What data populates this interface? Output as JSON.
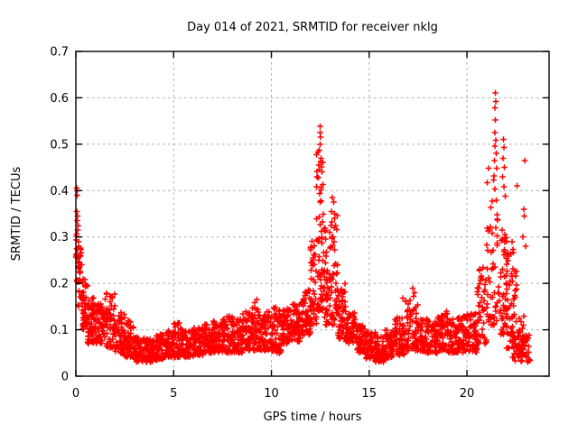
{
  "chart_data": {
    "type": "scatter",
    "title": "Day 014 of 2021, SRMTID for receiver nklg",
    "xlabel": "GPS time / hours",
    "ylabel": "SRMTID / TECUs",
    "xlim": [
      0,
      24.2
    ],
    "ylim": [
      0,
      0.7
    ],
    "xticks": [
      0,
      5,
      10,
      15,
      20
    ],
    "yticks": [
      0,
      0.1,
      0.2,
      0.3,
      0.4,
      0.5,
      0.6,
      0.7
    ],
    "grid": true,
    "legend": "none",
    "marker": "plus",
    "marker_color": "#ff0000",
    "grid_color": "#a8a8a8",
    "axis_color": "#000000",
    "series_name": "SRMTID",
    "seed": 42,
    "bands_format": [
      "hour_start",
      "hour_end",
      "n_points",
      "y_min",
      "y_max",
      "skew_exponent"
    ],
    "bands": [
      [
        0.0,
        0.15,
        16,
        0.2,
        0.32,
        1.0
      ],
      [
        0.1,
        0.35,
        28,
        0.15,
        0.29,
        1.2
      ],
      [
        0.3,
        0.6,
        42,
        0.1,
        0.21,
        1.3
      ],
      [
        0.6,
        1.0,
        55,
        0.07,
        0.17,
        1.4
      ],
      [
        1.0,
        1.5,
        60,
        0.07,
        0.16,
        1.4
      ],
      [
        1.5,
        2.0,
        60,
        0.06,
        0.18,
        1.3
      ],
      [
        2.0,
        2.5,
        60,
        0.05,
        0.14,
        1.4
      ],
      [
        2.5,
        3.0,
        60,
        0.04,
        0.12,
        1.5
      ],
      [
        3.0,
        3.5,
        60,
        0.03,
        0.085,
        1.3
      ],
      [
        3.5,
        4.0,
        60,
        0.03,
        0.08,
        1.3
      ],
      [
        4.0,
        4.5,
        60,
        0.035,
        0.09,
        1.3
      ],
      [
        4.5,
        5.0,
        60,
        0.04,
        0.1,
        1.3
      ],
      [
        5.0,
        5.5,
        60,
        0.04,
        0.115,
        1.4
      ],
      [
        5.5,
        6.0,
        60,
        0.04,
        0.1,
        1.3
      ],
      [
        6.0,
        6.5,
        60,
        0.045,
        0.105,
        1.3
      ],
      [
        6.5,
        7.0,
        60,
        0.05,
        0.115,
        1.3
      ],
      [
        7.0,
        7.5,
        60,
        0.05,
        0.12,
        1.3
      ],
      [
        7.5,
        8.0,
        60,
        0.05,
        0.13,
        1.4
      ],
      [
        8.0,
        8.5,
        60,
        0.05,
        0.125,
        1.3
      ],
      [
        8.5,
        9.0,
        60,
        0.055,
        0.14,
        1.3
      ],
      [
        9.0,
        9.5,
        60,
        0.055,
        0.15,
        1.4
      ],
      [
        9.5,
        10.0,
        60,
        0.055,
        0.14,
        1.3
      ],
      [
        10.0,
        10.5,
        60,
        0.05,
        0.15,
        1.3
      ],
      [
        10.5,
        11.0,
        60,
        0.07,
        0.145,
        1.3
      ],
      [
        11.0,
        11.5,
        60,
        0.075,
        0.16,
        1.3
      ],
      [
        11.5,
        12.0,
        60,
        0.085,
        0.19,
        1.3
      ],
      [
        12.0,
        12.3,
        40,
        0.11,
        0.3,
        1.5
      ],
      [
        12.3,
        12.65,
        55,
        0.14,
        0.5,
        1.8
      ],
      [
        12.65,
        13.0,
        45,
        0.11,
        0.33,
        1.5
      ],
      [
        13.0,
        13.4,
        50,
        0.11,
        0.36,
        1.6
      ],
      [
        13.4,
        13.8,
        50,
        0.08,
        0.2,
        1.4
      ],
      [
        13.8,
        14.3,
        55,
        0.07,
        0.14,
        1.3
      ],
      [
        14.3,
        14.8,
        55,
        0.05,
        0.11,
        1.3
      ],
      [
        14.8,
        15.3,
        55,
        0.035,
        0.095,
        1.3
      ],
      [
        15.3,
        15.8,
        55,
        0.03,
        0.09,
        1.2
      ],
      [
        15.8,
        16.3,
        55,
        0.04,
        0.1,
        1.3
      ],
      [
        16.3,
        16.8,
        55,
        0.045,
        0.13,
        1.4
      ],
      [
        16.8,
        17.5,
        70,
        0.055,
        0.165,
        1.4
      ],
      [
        17.5,
        18.0,
        55,
        0.05,
        0.125,
        1.3
      ],
      [
        18.0,
        18.5,
        55,
        0.05,
        0.12,
        1.3
      ],
      [
        18.5,
        19.0,
        55,
        0.055,
        0.14,
        1.3
      ],
      [
        19.0,
        19.5,
        55,
        0.05,
        0.125,
        1.3
      ],
      [
        19.5,
        20.0,
        55,
        0.05,
        0.13,
        1.3
      ],
      [
        20.0,
        20.5,
        55,
        0.05,
        0.135,
        1.3
      ],
      [
        20.5,
        21.0,
        45,
        0.07,
        0.24,
        1.5
      ],
      [
        21.0,
        21.6,
        55,
        0.11,
        0.46,
        1.7
      ],
      [
        21.6,
        22.05,
        50,
        0.09,
        0.33,
        1.6
      ],
      [
        22.0,
        22.55,
        55,
        0.06,
        0.27,
        1.4
      ],
      [
        22.55,
        23.0,
        40,
        0.045,
        0.14,
        1.4
      ],
      [
        22.3,
        23.25,
        45,
        0.03,
        0.09,
        1.2
      ]
    ],
    "outlier_points": [
      [
        0.05,
        0.405
      ],
      [
        0.08,
        0.4
      ],
      [
        0.06,
        0.39
      ],
      [
        0.04,
        0.355
      ],
      [
        0.09,
        0.345
      ],
      [
        0.07,
        0.335
      ],
      [
        0.12,
        0.325
      ],
      [
        0.1,
        0.315
      ],
      [
        9.25,
        0.165
      ],
      [
        9.15,
        0.158
      ],
      [
        12.5,
        0.539
      ],
      [
        12.5,
        0.525
      ],
      [
        12.51,
        0.515
      ],
      [
        12.49,
        0.5
      ],
      [
        12.45,
        0.487
      ],
      [
        12.55,
        0.47
      ],
      [
        12.42,
        0.455
      ],
      [
        12.58,
        0.44
      ],
      [
        12.4,
        0.428
      ],
      [
        12.62,
        0.413
      ],
      [
        13.12,
        0.385
      ],
      [
        13.18,
        0.375
      ],
      [
        13.08,
        0.355
      ],
      [
        13.22,
        0.34
      ],
      [
        13.28,
        0.325
      ],
      [
        16.72,
        0.168
      ],
      [
        17.22,
        0.19
      ],
      [
        17.32,
        0.18
      ],
      [
        17.27,
        0.172
      ],
      [
        21.45,
        0.611
      ],
      [
        21.47,
        0.592
      ],
      [
        21.44,
        0.578
      ],
      [
        21.46,
        0.552
      ],
      [
        21.43,
        0.525
      ],
      [
        21.48,
        0.508
      ],
      [
        21.42,
        0.496
      ],
      [
        21.5,
        0.48
      ],
      [
        21.4,
        0.465
      ],
      [
        21.52,
        0.448
      ],
      [
        21.38,
        0.432
      ],
      [
        21.87,
        0.51
      ],
      [
        21.9,
        0.493
      ],
      [
        21.85,
        0.47
      ],
      [
        21.92,
        0.45
      ],
      [
        21.83,
        0.43
      ],
      [
        21.88,
        0.408
      ],
      [
        21.95,
        0.388
      ],
      [
        22.3,
        0.29
      ],
      [
        22.36,
        0.273
      ],
      [
        22.55,
        0.41
      ],
      [
        22.95,
        0.465
      ],
      [
        22.9,
        0.36
      ],
      [
        22.93,
        0.345
      ],
      [
        22.87,
        0.3
      ],
      [
        23.0,
        0.28
      ]
    ]
  }
}
